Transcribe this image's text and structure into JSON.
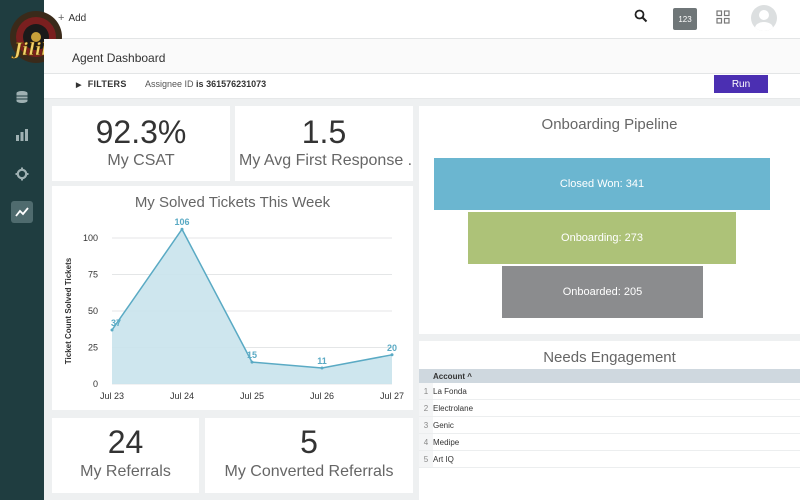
{
  "logo": {
    "text": "Jilibet"
  },
  "topbar": {
    "add_label": "Add",
    "badge": "123"
  },
  "page": {
    "title": "Agent Dashboard"
  },
  "filters": {
    "label": "FILTERS",
    "assignee_label": "Assignee ID",
    "operator": "is",
    "assignee_value": "361576231073",
    "run_label": "Run"
  },
  "kpis": {
    "csat": {
      "value": "92.3%",
      "label": "My CSAT"
    },
    "first_response": {
      "value": "1.5",
      "label": "My Avg First Response ..."
    },
    "referrals": {
      "value": "24",
      "label": "My Referrals"
    },
    "converted": {
      "value": "5",
      "label": "My Converted Referrals"
    }
  },
  "solved": {
    "title": "My Solved Tickets This Week"
  },
  "chart_data": {
    "type": "area",
    "title": "My Solved Tickets This Week",
    "ylabel": "Ticket Count Solved Tickets",
    "xlabel": "",
    "categories": [
      "Jul 23",
      "Jul 24",
      "Jul 25",
      "Jul 26",
      "Jul 27"
    ],
    "values": [
      37,
      106,
      15,
      11,
      20
    ],
    "ylim": [
      0,
      100
    ],
    "yticks": [
      0,
      25,
      50,
      75,
      100
    ],
    "grid": true,
    "color": "#5aaac4",
    "fill": "#c9e3ec"
  },
  "funnel": {
    "title": "Onboarding Pipeline",
    "stages": [
      {
        "label": "Closed Won: 341",
        "color": "#6bb6d0"
      },
      {
        "label": "Onboarding: 273",
        "color": "#adc278"
      },
      {
        "label": "Onboarded: 205",
        "color": "#8b8c8e"
      }
    ]
  },
  "engagement": {
    "title": "Needs Engagement",
    "column": "Account",
    "rows": [
      {
        "n": "1",
        "name": "La Fonda"
      },
      {
        "n": "2",
        "name": "Electrolane"
      },
      {
        "n": "3",
        "name": "Genic"
      },
      {
        "n": "4",
        "name": "Medipe"
      },
      {
        "n": "5",
        "name": "Art IQ"
      }
    ]
  },
  "colors": {
    "sidebar": "#1f3d40",
    "accent": "#4b2fb2"
  }
}
